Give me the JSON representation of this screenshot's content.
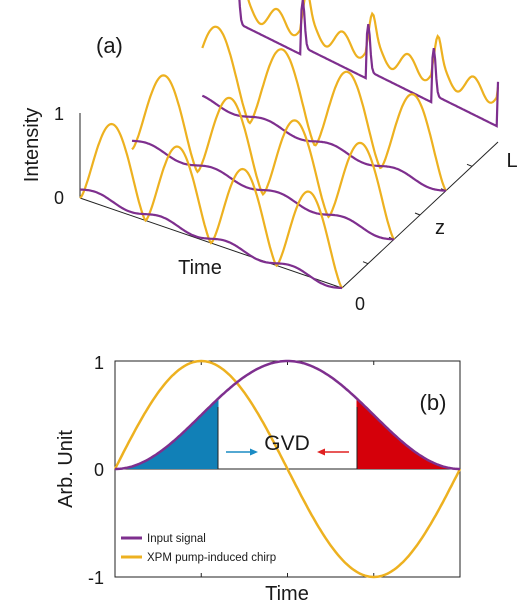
{
  "chart_data": [
    {
      "panel": "(a)",
      "type": "line",
      "style": "3d-waterfall",
      "ylabel": "Intensity",
      "xlabel": "Time",
      "zlabel": "z",
      "yticks": [
        "0",
        "1"
      ],
      "zticks": [
        "0",
        "L"
      ],
      "z_slices": [
        "0",
        "1/3 L",
        "2/3 L",
        "L"
      ],
      "series": [
        {
          "color": "#EDB120",
          "description": "pump pulse train (4 humps per slice), steepening along z"
        },
        {
          "color": "#7E2F8E",
          "description": "signal, falling gradually, with sharp spikes at larger z"
        }
      ]
    },
    {
      "panel": "(b)",
      "type": "line",
      "xlabel": "Time",
      "ylabel": "Arb. Unit",
      "yticks": [
        "-1",
        "0",
        "1"
      ],
      "ylim": [
        -1,
        1
      ],
      "x": [
        0,
        0.0625,
        0.125,
        0.1875,
        0.25,
        0.3125,
        0.375,
        0.4375,
        0.5,
        0.5625,
        0.625,
        0.6875,
        0.75,
        0.8125,
        0.875,
        0.9375,
        1
      ],
      "series": [
        {
          "name": "Input signal",
          "color": "#7E2F8E",
          "values": [
            0,
            0.038,
            0.146,
            0.309,
            0.5,
            0.691,
            0.854,
            0.962,
            1,
            0.962,
            0.854,
            0.691,
            0.5,
            0.309,
            0.146,
            0.038,
            0
          ]
        },
        {
          "name": "XPM pump-induced chirp",
          "color": "#EDB120",
          "values": [
            0,
            0.383,
            0.707,
            0.924,
            1,
            0.924,
            0.707,
            0.383,
            0,
            -0.383,
            -0.707,
            -0.924,
            -1,
            -0.924,
            -0.707,
            -0.383,
            0
          ]
        }
      ],
      "annotations": [
        {
          "text": "GVD",
          "arrows": [
            {
              "color": "#1A8BC4",
              "direction": "right"
            },
            {
              "color": "#E02020",
              "direction": "left"
            }
          ]
        }
      ],
      "shaded_regions": [
        {
          "color": "#1180B7",
          "x_range": [
            0,
            0.3
          ]
        },
        {
          "color": "#D5000A",
          "x_range": [
            0.7,
            1.0
          ]
        }
      ],
      "legend": "bottom-left",
      "label": "(b)"
    }
  ]
}
